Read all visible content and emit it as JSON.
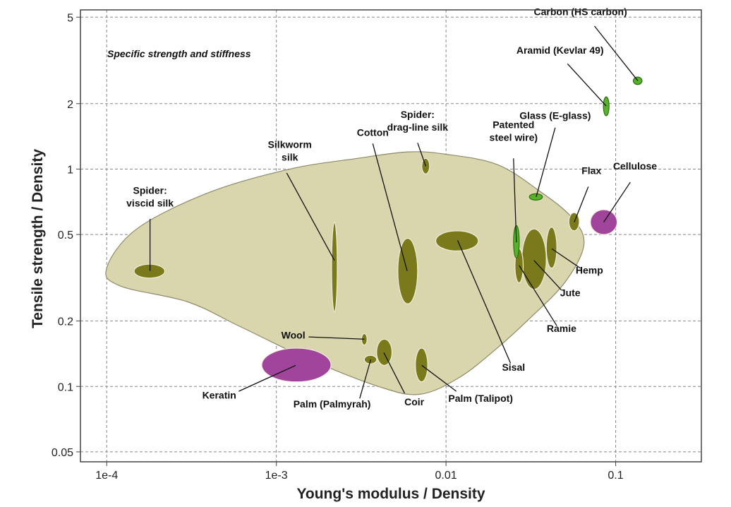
{
  "chart_data": {
    "type": "scatter",
    "title": "",
    "annotation": "Specific strength and stiffness",
    "xlabel": "Young's modulus / Density",
    "ylabel": "Tensile strength / Density",
    "xscale": "log",
    "yscale": "log",
    "xlim": [
      7e-05,
      0.32
    ],
    "ylim": [
      0.045,
      5.4
    ],
    "xticks": [
      {
        "value": 0.0001,
        "label": "1e-4"
      },
      {
        "value": 0.001,
        "label": "1e-3"
      },
      {
        "value": 0.01,
        "label": "0.01"
      },
      {
        "value": 0.1,
        "label": "0.1"
      }
    ],
    "yticks": [
      {
        "value": 0.05,
        "label": "0.05"
      },
      {
        "value": 0.1,
        "label": "0.1"
      },
      {
        "value": 0.2,
        "label": "0.2"
      },
      {
        "value": 0.5,
        "label": "0.5"
      },
      {
        "value": 1,
        "label": "1"
      },
      {
        "value": 2,
        "label": "2"
      },
      {
        "value": 5,
        "label": "5"
      }
    ],
    "grid": true,
    "envelope": [
      [
        0.0001,
        0.35
      ],
      [
        0.00015,
        0.53
      ],
      [
        0.0004,
        0.78
      ],
      [
        0.0012,
        1.0
      ],
      [
        0.003,
        1.12
      ],
      [
        0.006,
        1.2
      ],
      [
        0.01,
        1.17
      ],
      [
        0.02,
        1.05
      ],
      [
        0.035,
        0.8
      ],
      [
        0.055,
        0.6
      ],
      [
        0.065,
        0.45
      ],
      [
        0.05,
        0.3
      ],
      [
        0.03,
        0.2
      ],
      [
        0.02,
        0.15
      ],
      [
        0.012,
        0.11
      ],
      [
        0.007,
        0.092
      ],
      [
        0.004,
        0.1
      ],
      [
        0.0015,
        0.135
      ],
      [
        0.0006,
        0.19
      ],
      [
        0.0003,
        0.245
      ],
      [
        0.00012,
        0.29
      ],
      [
        0.0001,
        0.35
      ]
    ],
    "colors": {
      "envelope": "#d9d6ae",
      "envelope_stroke": "#8c8a6a",
      "natural": "#7a7a1c",
      "synthetic": "#56b32a",
      "protein": "#a0449c",
      "grid": "#888888"
    },
    "materials": [
      {
        "name": "Spider: viscid silk",
        "x": 0.00018,
        "y": 0.34,
        "xr": [
          0.000145,
          0.00022
        ],
        "yr": [
          0.315,
          0.365
        ],
        "kind": "natural"
      },
      {
        "name": "Silkworm silk",
        "x": 0.0022,
        "y": 0.38,
        "xr": [
          0.00215,
          0.00225
        ],
        "yr": [
          0.22,
          0.57
        ],
        "kind": "natural"
      },
      {
        "name": "Cotton",
        "x": 0.0059,
        "y": 0.34,
        "xr": [
          0.0052,
          0.0068
        ],
        "yr": [
          0.24,
          0.48
        ],
        "kind": "natural"
      },
      {
        "name": "Spider: drag-line silk",
        "x": 0.0076,
        "y": 1.03,
        "xr": [
          0.0072,
          0.008
        ],
        "yr": [
          0.95,
          1.12
        ],
        "kind": "natural"
      },
      {
        "name": "Sisal",
        "x": 0.0117,
        "y": 0.47,
        "xr": [
          0.0087,
          0.0155
        ],
        "yr": [
          0.42,
          0.52
        ],
        "kind": "natural"
      },
      {
        "name": "Wool",
        "x": 0.0033,
        "y": 0.165,
        "xr": [
          0.0032,
          0.0034
        ],
        "yr": [
          0.155,
          0.175
        ],
        "kind": "natural"
      },
      {
        "name": "Coir",
        "x": 0.0043,
        "y": 0.143,
        "xr": [
          0.0039,
          0.0048
        ],
        "yr": [
          0.125,
          0.165
        ],
        "kind": "natural"
      },
      {
        "name": "Palm (Talipot)",
        "x": 0.0072,
        "y": 0.125,
        "xr": [
          0.0066,
          0.0078
        ],
        "yr": [
          0.105,
          0.15
        ],
        "kind": "natural"
      },
      {
        "name": "Palm (Palmyrah)",
        "x": 0.0036,
        "y": 0.133,
        "xr": [
          0.0033,
          0.0039
        ],
        "yr": [
          0.127,
          0.139
        ],
        "kind": "natural"
      },
      {
        "name": "Keratin",
        "x": 0.0013,
        "y": 0.125,
        "xr": [
          0.00082,
          0.0021
        ],
        "yr": [
          0.105,
          0.15
        ],
        "kind": "protein"
      },
      {
        "name": "Jute",
        "x": 0.033,
        "y": 0.38,
        "xr": [
          0.028,
          0.039
        ],
        "yr": [
          0.28,
          0.53
        ],
        "kind": "natural"
      },
      {
        "name": "Ramie",
        "x": 0.027,
        "y": 0.36,
        "xr": [
          0.0255,
          0.0285
        ],
        "yr": [
          0.3,
          0.43
        ],
        "kind": "natural"
      },
      {
        "name": "Hemp",
        "x": 0.042,
        "y": 0.43,
        "xr": [
          0.039,
          0.045
        ],
        "yr": [
          0.35,
          0.54
        ],
        "kind": "natural"
      },
      {
        "name": "Flax",
        "x": 0.057,
        "y": 0.57,
        "xr": [
          0.053,
          0.061
        ],
        "yr": [
          0.52,
          0.63
        ],
        "kind": "natural"
      },
      {
        "name": "Cellulose",
        "x": 0.085,
        "y": 0.57,
        "xr": [
          0.071,
          0.102
        ],
        "yr": [
          0.5,
          0.65
        ],
        "kind": "protein"
      },
      {
        "name": "Patented steel wire)",
        "x": 0.026,
        "y": 0.46,
        "xr": [
          0.0253,
          0.0267
        ],
        "yr": [
          0.39,
          0.55
        ],
        "kind": "synthetic"
      },
      {
        "name": "Glass (E-glass)",
        "x": 0.034,
        "y": 0.745,
        "xr": [
          0.031,
          0.037
        ],
        "yr": [
          0.72,
          0.77
        ],
        "kind": "synthetic"
      },
      {
        "name": "Aramid (Kevlar 49)",
        "x": 0.088,
        "y": 1.95,
        "xr": [
          0.086,
          0.09
        ],
        "yr": [
          1.76,
          2.15
        ],
        "kind": "synthetic"
      },
      {
        "name": "Carbon (HS carbon)",
        "x": 0.135,
        "y": 2.55,
        "xr": [
          0.127,
          0.143
        ],
        "yr": [
          2.45,
          2.65
        ],
        "kind": "synthetic"
      }
    ],
    "labels": [
      {
        "lines": [
          "Spider:",
          "viscid silk"
        ],
        "x": 0.00018,
        "y": 0.77,
        "anchor": "middle",
        "tx": 0.00018,
        "ty": 0.59,
        "mi": 0
      },
      {
        "lines": [
          "Silkworm",
          "silk"
        ],
        "x": 0.0012,
        "y": 1.25,
        "anchor": "middle",
        "tx": 0.00115,
        "ty": 0.96,
        "mi": 1
      },
      {
        "lines": [
          "Cotton"
        ],
        "x": 0.0037,
        "y": 1.42,
        "anchor": "middle",
        "tx": 0.0037,
        "ty": 1.31,
        "mi": 2
      },
      {
        "lines": [
          "Spider:",
          "drag-line silk"
        ],
        "x": 0.0068,
        "y": 1.72,
        "anchor": "middle",
        "tx": 0.0068,
        "ty": 1.32,
        "mi": 3
      },
      {
        "lines": [
          "Sisal"
        ],
        "x": 0.025,
        "y": 0.118,
        "anchor": "middle",
        "tx": 0.024,
        "ty": 0.128,
        "mi": 4
      },
      {
        "lines": [
          "Wool"
        ],
        "x": 0.00148,
        "y": 0.166,
        "anchor": "end",
        "tx": 0.00155,
        "ty": 0.169,
        "mi": 5
      },
      {
        "lines": [
          "Coir"
        ],
        "x": 0.0065,
        "y": 0.082,
        "anchor": "middle",
        "tx": 0.0057,
        "ty": 0.093,
        "mi": 6
      },
      {
        "lines": [
          "Palm (Talipot)"
        ],
        "x": 0.016,
        "y": 0.085,
        "anchor": "middle",
        "tx": 0.0115,
        "ty": 0.095,
        "mi": 7
      },
      {
        "lines": [
          "Palm (Palmyrah)"
        ],
        "x": 0.0036,
        "y": 0.08,
        "anchor": "end",
        "tx": 0.0031,
        "ty": 0.088,
        "mi": 8
      },
      {
        "lines": [
          "Keratin"
        ],
        "x": 0.00058,
        "y": 0.088,
        "anchor": "end",
        "tx": 0.0006,
        "ty": 0.095,
        "mi": 9
      },
      {
        "lines": [
          "Jute"
        ],
        "x": 0.054,
        "y": 0.26,
        "anchor": "middle",
        "tx": 0.048,
        "ty": 0.277,
        "mi": 10
      },
      {
        "lines": [
          "Ramie"
        ],
        "x": 0.048,
        "y": 0.178,
        "anchor": "middle",
        "tx": 0.045,
        "ty": 0.19,
        "mi": 11
      },
      {
        "lines": [
          "Hemp"
        ],
        "x": 0.07,
        "y": 0.33,
        "anchor": "middle",
        "tx": 0.062,
        "ty": 0.35,
        "mi": 12
      },
      {
        "lines": [
          "Flax"
        ],
        "x": 0.072,
        "y": 0.95,
        "anchor": "middle",
        "tx": 0.069,
        "ty": 0.83,
        "mi": 13
      },
      {
        "lines": [
          "Cellulose"
        ],
        "x": 0.13,
        "y": 0.995,
        "anchor": "middle",
        "tx": 0.122,
        "ty": 0.87,
        "mi": 14
      },
      {
        "lines": [
          "Patented",
          "steel wire)"
        ],
        "x": 0.025,
        "y": 1.54,
        "anchor": "middle",
        "tx": 0.025,
        "ty": 1.12,
        "mi": 15
      },
      {
        "lines": [
          "Glass (E-glass)"
        ],
        "x": 0.044,
        "y": 1.7,
        "anchor": "middle",
        "tx": 0.044,
        "ty": 1.55,
        "mi": 16
      },
      {
        "lines": [
          "Aramid (Kevlar 49)"
        ],
        "x": 0.047,
        "y": 3.4,
        "anchor": "middle",
        "tx": 0.052,
        "ty": 3.05,
        "mi": 17
      },
      {
        "lines": [
          "Carbon (HS carbon)"
        ],
        "x": 0.062,
        "y": 5.1,
        "anchor": "middle",
        "tx": 0.075,
        "ty": 4.55,
        "mi": 18
      }
    ]
  }
}
